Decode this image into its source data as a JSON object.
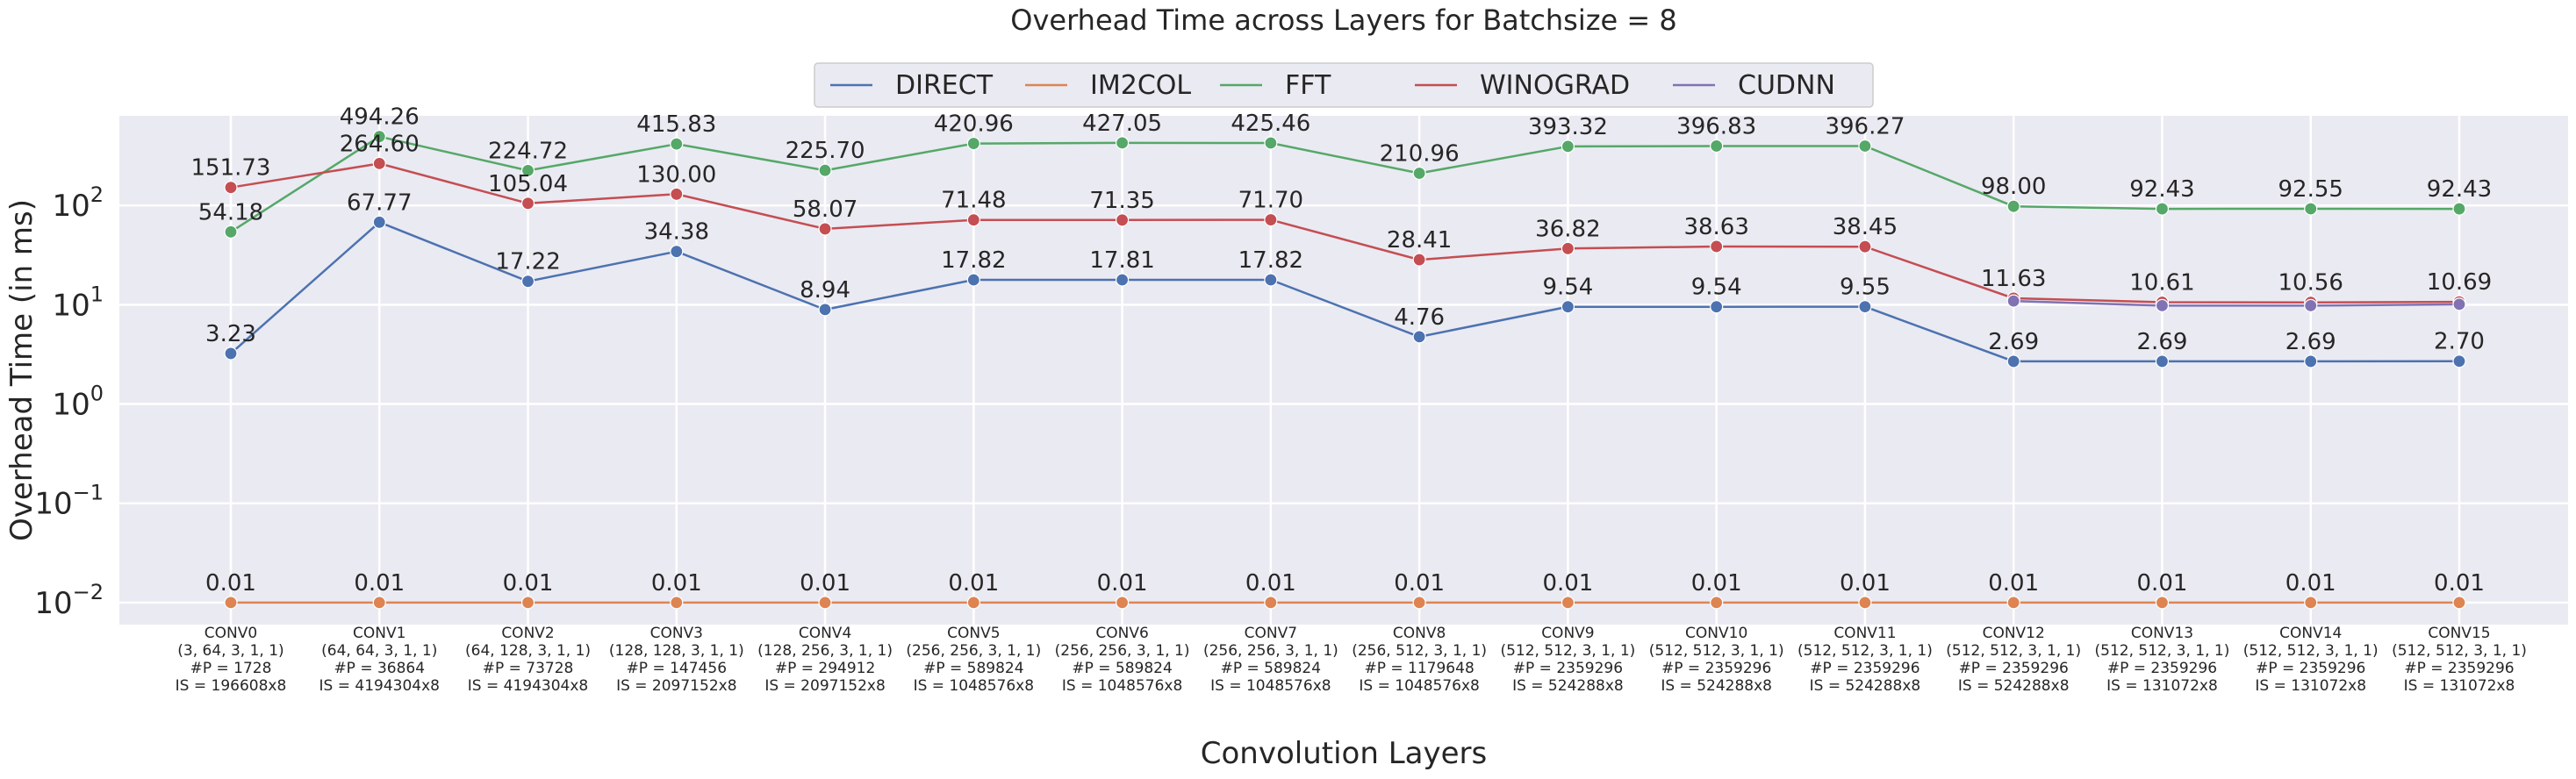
{
  "chart_data": {
    "type": "line",
    "title": "Overhead Time across Layers for Batchsize = 8",
    "xlabel": "Convolution Layers",
    "ylabel": "Overhead Time (in ms)",
    "y_scale": "log",
    "ylim": [
      0.006,
      800
    ],
    "y_ticks": [
      {
        "value": 100,
        "base": "10",
        "exp": "2"
      },
      {
        "value": 10,
        "base": "10",
        "exp": "1"
      },
      {
        "value": 1,
        "base": "10",
        "exp": "0"
      },
      {
        "value": 0.1,
        "base": "10",
        "exp": "−1"
      },
      {
        "value": 0.01,
        "base": "10",
        "exp": "−2"
      }
    ],
    "grid": true,
    "legend_position": "top-center",
    "categories": [
      {
        "name": "CONV0",
        "shape": "(3, 64, 3, 1, 1)",
        "params": "#P = 1728",
        "input": "IS = 196608x8"
      },
      {
        "name": "CONV1",
        "shape": "(64, 64, 3, 1, 1)",
        "params": "#P = 36864",
        "input": "IS = 4194304x8"
      },
      {
        "name": "CONV2",
        "shape": "(64, 128, 3, 1, 1)",
        "params": "#P = 73728",
        "input": "IS = 4194304x8"
      },
      {
        "name": "CONV3",
        "shape": "(128, 128, 3, 1, 1)",
        "params": "#P = 147456",
        "input": "IS = 2097152x8"
      },
      {
        "name": "CONV4",
        "shape": "(128, 256, 3, 1, 1)",
        "params": "#P = 294912",
        "input": "IS = 2097152x8"
      },
      {
        "name": "CONV5",
        "shape": "(256, 256, 3, 1, 1)",
        "params": "#P = 589824",
        "input": "IS = 1048576x8"
      },
      {
        "name": "CONV6",
        "shape": "(256, 256, 3, 1, 1)",
        "params": "#P = 589824",
        "input": "IS = 1048576x8"
      },
      {
        "name": "CONV7",
        "shape": "(256, 256, 3, 1, 1)",
        "params": "#P = 589824",
        "input": "IS = 1048576x8"
      },
      {
        "name": "CONV8",
        "shape": "(256, 512, 3, 1, 1)",
        "params": "#P = 1179648",
        "input": "IS = 1048576x8"
      },
      {
        "name": "CONV9",
        "shape": "(512, 512, 3, 1, 1)",
        "params": "#P = 2359296",
        "input": "IS = 524288x8"
      },
      {
        "name": "CONV10",
        "shape": "(512, 512, 3, 1, 1)",
        "params": "#P = 2359296",
        "input": "IS = 524288x8"
      },
      {
        "name": "CONV11",
        "shape": "(512, 512, 3, 1, 1)",
        "params": "#P = 2359296",
        "input": "IS = 524288x8"
      },
      {
        "name": "CONV12",
        "shape": "(512, 512, 3, 1, 1)",
        "params": "#P = 2359296",
        "input": "IS = 524288x8"
      },
      {
        "name": "CONV13",
        "shape": "(512, 512, 3, 1, 1)",
        "params": "#P = 2359296",
        "input": "IS = 131072x8"
      },
      {
        "name": "CONV14",
        "shape": "(512, 512, 3, 1, 1)",
        "params": "#P = 2359296",
        "input": "IS = 131072x8"
      },
      {
        "name": "CONV15",
        "shape": "(512, 512, 3, 1, 1)",
        "params": "#P = 2359296",
        "input": "IS = 131072x8"
      }
    ],
    "series": [
      {
        "name": "DIRECT",
        "color": "#4c72b0",
        "values": [
          3.23,
          67.77,
          17.22,
          34.38,
          8.94,
          17.82,
          17.81,
          17.82,
          4.76,
          9.54,
          9.54,
          9.55,
          2.69,
          2.69,
          2.69,
          2.7
        ],
        "labels": [
          "3.23",
          "67.77",
          "17.22",
          "34.38",
          "8.94",
          "17.82",
          "17.81",
          "17.82",
          "4.76",
          "9.54",
          "9.54",
          "9.55",
          "2.69",
          "2.69",
          "2.69",
          "2.70"
        ]
      },
      {
        "name": "IM2COL",
        "color": "#dd8452",
        "values": [
          0.01,
          0.01,
          0.01,
          0.01,
          0.01,
          0.01,
          0.01,
          0.01,
          0.01,
          0.01,
          0.01,
          0.01,
          0.01,
          0.01,
          0.01,
          0.01
        ],
        "labels": [
          "0.01",
          "0.01",
          "0.01",
          "0.01",
          "0.01",
          "0.01",
          "0.01",
          "0.01",
          "0.01",
          "0.01",
          "0.01",
          "0.01",
          "0.01",
          "0.01",
          "0.01",
          "0.01"
        ]
      },
      {
        "name": "FFT",
        "color": "#55a868",
        "values": [
          54.18,
          494.26,
          224.72,
          415.83,
          225.7,
          420.96,
          427.05,
          425.46,
          210.96,
          393.32,
          396.83,
          396.27,
          98.0,
          92.43,
          92.55,
          92.43
        ],
        "labels": [
          "54.18",
          "494.26",
          "224.72",
          "415.83",
          "225.70",
          "420.96",
          "427.05",
          "425.46",
          "210.96",
          "393.32",
          "396.83",
          "396.27",
          "98.00",
          "92.43",
          "92.55",
          "92.43"
        ]
      },
      {
        "name": "WINOGRAD",
        "color": "#c44e52",
        "values": [
          151.73,
          264.6,
          105.04,
          130.0,
          58.07,
          71.48,
          71.35,
          71.7,
          28.41,
          36.82,
          38.63,
          38.45,
          11.63,
          10.61,
          10.56,
          10.69
        ],
        "labels": [
          "151.73",
          "264.60",
          "105.04",
          "130.00",
          "58.07",
          "71.48",
          "71.35",
          "71.70",
          "28.41",
          "36.82",
          "38.63",
          "38.45",
          "11.63",
          "10.61",
          "10.56",
          "10.69"
        ]
      },
      {
        "name": "CUDNN",
        "color": "#8172b3",
        "values": [
          null,
          null,
          null,
          null,
          null,
          null,
          null,
          null,
          null,
          null,
          null,
          null,
          10.9,
          9.8,
          9.8,
          10.1
        ],
        "labels": []
      }
    ]
  }
}
